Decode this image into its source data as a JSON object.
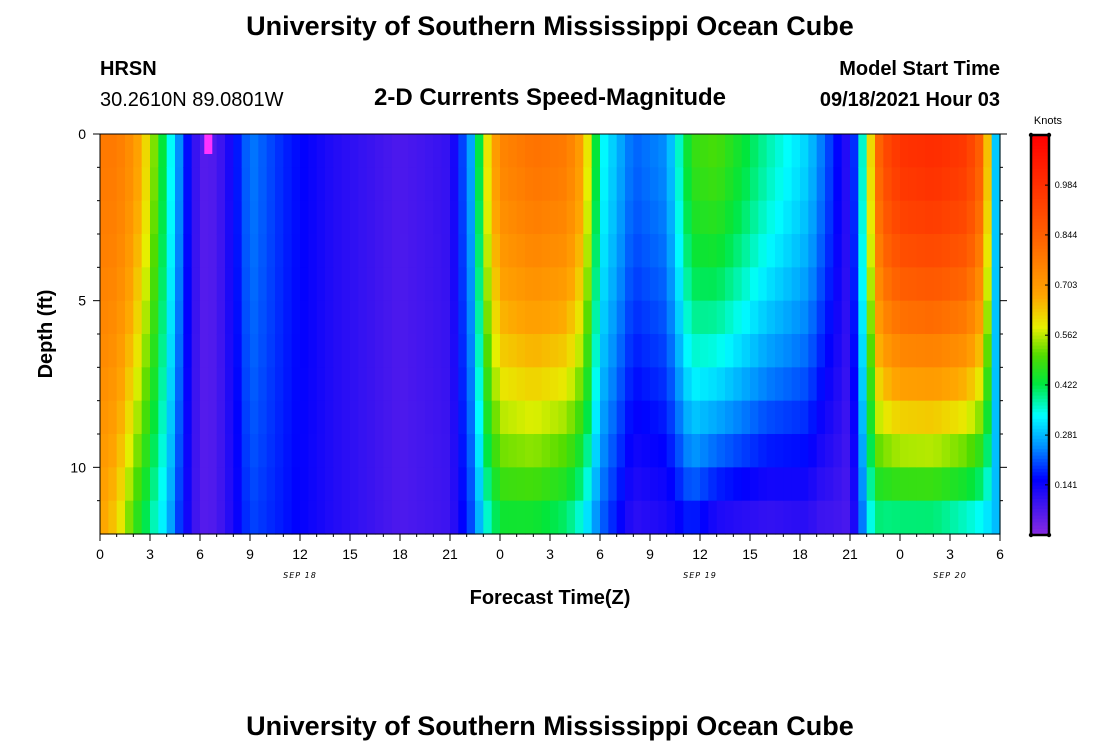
{
  "header": {
    "title": "University of Southern Mississippi Ocean Cube",
    "station": "HRSN",
    "coordinates": "30.2610N  89.0801W",
    "subtitle": "2-D Currents Speed-Magnitude",
    "model_start_label": "Model Start Time",
    "model_start_value": "09/18/2021 Hour 03"
  },
  "footer": {
    "title": "University of Southern Mississippi Ocean Cube"
  },
  "chart_data": {
    "type": "heatmap",
    "title": "2-D Currents Speed-Magnitude",
    "xlabel": "Forecast Time(Z)",
    "ylabel": "Depth (ft)",
    "x_range_hours": [
      0,
      54
    ],
    "y_range_ft": [
      0,
      12
    ],
    "x_tick_labels": [
      "0",
      "3",
      "6",
      "9",
      "12",
      "15",
      "18",
      "21",
      "0",
      "3",
      "6",
      "9",
      "12",
      "15",
      "18",
      "21",
      "0",
      "3",
      "6"
    ],
    "x_tick_hours": [
      0,
      3,
      6,
      9,
      12,
      15,
      18,
      21,
      24,
      27,
      30,
      33,
      36,
      39,
      42,
      45,
      48,
      51,
      54
    ],
    "y_tick_labels": [
      "0",
      "5",
      "10"
    ],
    "y_tick_values": [
      0,
      5,
      10
    ],
    "date_labels": [
      {
        "text": "SEP 18",
        "hour": 12
      },
      {
        "text": "SEP 19",
        "hour": 36
      },
      {
        "text": "SEP 20",
        "hour": 51
      }
    ],
    "colorbar": {
      "unit": "Knots",
      "range": [
        0,
        1.125
      ],
      "tick_labels": [
        "0.984",
        "0.844",
        "0.703",
        "0.562",
        "0.422",
        "0.281",
        "0.141"
      ],
      "tick_values": [
        0.984,
        0.844,
        0.703,
        0.562,
        0.422,
        0.281,
        0.141
      ]
    },
    "time_profile_knots": {
      "hours": [
        0,
        1,
        2,
        3,
        4,
        4.5,
        5,
        6,
        7,
        8,
        9,
        11,
        14,
        18,
        21,
        22.5,
        23,
        24,
        26,
        28,
        29,
        30,
        32,
        34,
        35.5,
        37,
        40,
        42.5,
        43,
        44,
        45,
        46,
        46.5,
        47,
        48,
        50,
        52,
        53,
        54
      ],
      "surface": [
        0.78,
        0.78,
        0.72,
        0.58,
        0.38,
        0.3,
        0.2,
        0.06,
        0.07,
        0.15,
        0.24,
        0.18,
        0.12,
        0.07,
        0.1,
        0.3,
        0.55,
        0.75,
        0.8,
        0.78,
        0.68,
        0.35,
        0.22,
        0.25,
        0.48,
        0.5,
        0.38,
        0.3,
        0.26,
        0.18,
        0.1,
        0.45,
        0.78,
        0.9,
        0.98,
        1.0,
        0.96,
        0.82,
        0.12
      ],
      "bottom": [
        0.68,
        0.62,
        0.48,
        0.38,
        0.3,
        0.22,
        0.16,
        0.06,
        0.07,
        0.13,
        0.2,
        0.17,
        0.12,
        0.07,
        0.09,
        0.22,
        0.32,
        0.42,
        0.42,
        0.38,
        0.32,
        0.22,
        0.1,
        0.12,
        0.16,
        0.1,
        0.08,
        0.1,
        0.08,
        0.08,
        0.07,
        0.28,
        0.38,
        0.36,
        0.36,
        0.36,
        0.32,
        0.3,
        0.28
      ]
    },
    "max_marker": {
      "hour": 6.5,
      "depth_ft": 0.3,
      "value_knots": 0.0
    }
  }
}
